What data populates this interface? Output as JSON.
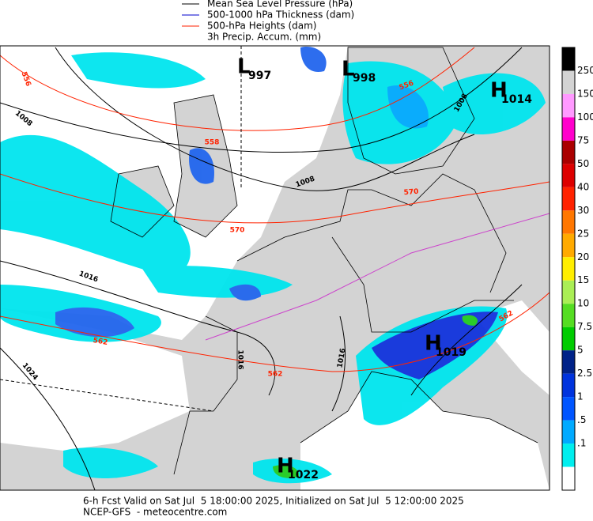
{
  "legend": {
    "items": [
      {
        "label": "Mean Sea Level Pressure (hPa)",
        "color": "#000000"
      },
      {
        "label": "500-1000 hPa Thickness (dam)",
        "color": "#0000cc"
      },
      {
        "label": "500-hPa Heights (dam)",
        "color": "#ff2200"
      },
      {
        "label": "3h Precip. Accum. (mm)"
      }
    ]
  },
  "colorbar": {
    "labels": [
      "250",
      "150",
      "100",
      "75",
      "50",
      "40",
      "30",
      "25",
      "20",
      "15",
      "10",
      "7.5",
      "5",
      "2.5",
      "1",
      ".5",
      ".1"
    ],
    "colors": [
      "#000000",
      "#d3d3d3",
      "#ff99ff",
      "#ff00cc",
      "#aa0000",
      "#dd0000",
      "#ff2200",
      "#ff7700",
      "#ffaa00",
      "#ffee00",
      "#aaee55",
      "#55dd22",
      "#00cc00",
      "#002288",
      "#0033dd",
      "#0055ff",
      "#00aaff",
      "#00eeee",
      "#ffffff"
    ]
  },
  "centers": [
    {
      "letter": "L",
      "value": "997"
    },
    {
      "letter": "L",
      "value": "998"
    },
    {
      "letter": "H",
      "value": "1014"
    },
    {
      "letter": "H",
      "value": "1019"
    },
    {
      "letter": "H",
      "value": "1022"
    }
  ],
  "contour_labels": [
    {
      "text": "556",
      "color": "#ff2200"
    },
    {
      "text": "1008",
      "color": "#000000"
    },
    {
      "text": "558",
      "color": "#ff2200"
    },
    {
      "text": "1008",
      "color": "#000000"
    },
    {
      "text": "570",
      "color": "#ff2200"
    },
    {
      "text": "1016",
      "color": "#000000"
    },
    {
      "text": "570",
      "color": "#ff2200"
    },
    {
      "text": "562",
      "color": "#ff2200"
    },
    {
      "text": "562",
      "color": "#ff2200"
    },
    {
      "text": "1024",
      "color": "#000000"
    },
    {
      "text": "1016",
      "color": "#000000"
    },
    {
      "text": "1016",
      "color": "#000000"
    },
    {
      "text": "1008",
      "color": "#000000"
    },
    {
      "text": "562",
      "color": "#ff2200"
    },
    {
      "text": "556",
      "color": "#ff2200"
    }
  ],
  "footer": {
    "line1": "6-h Fcst Valid on Sat Jul  5 18:00:00 2025, Initialized on Sat Jul  5 12:00:00 2025",
    "line2": "NCEP-GFS  - meteocentre.com"
  }
}
